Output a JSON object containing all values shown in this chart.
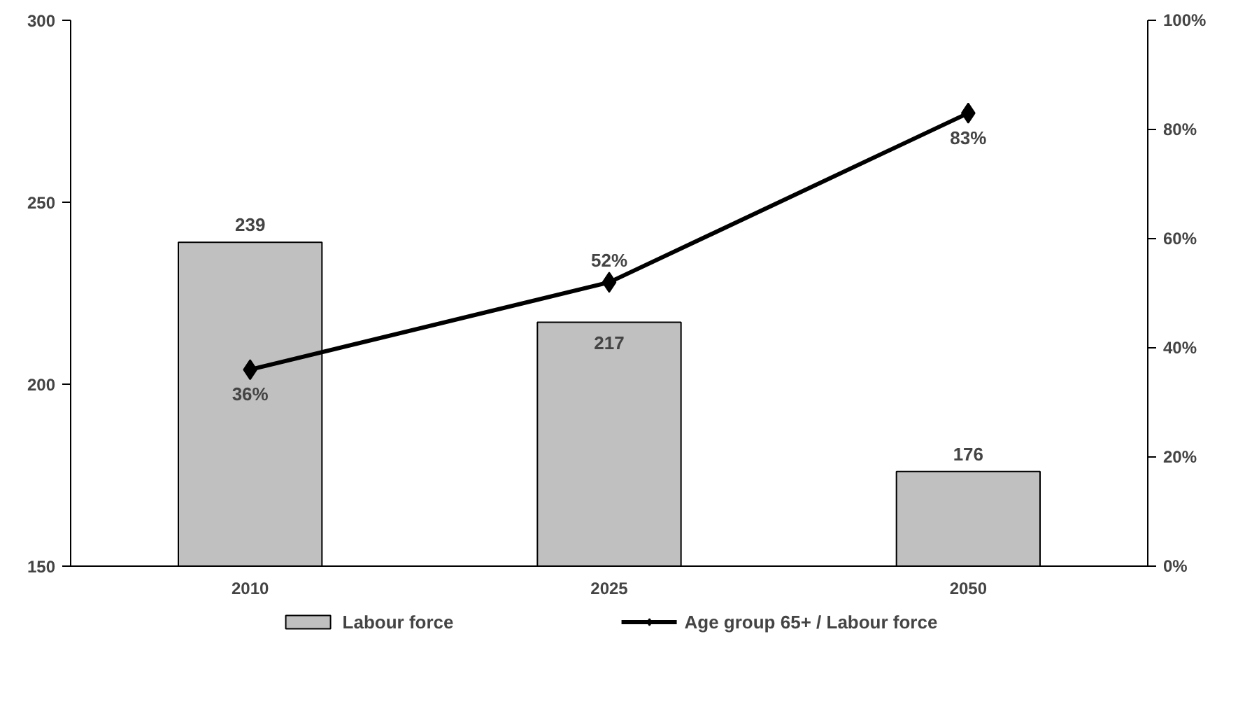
{
  "chart_data": {
    "type": "bar",
    "categories": [
      "2010",
      "2025",
      "2050"
    ],
    "series": [
      {
        "name": "Labour force",
        "color": "#c0c0c0",
        "values": [
          239,
          217,
          176
        ],
        "value_labels": [
          "239",
          "217",
          "176"
        ]
      },
      {
        "name": "Age group 65+ / Labour force",
        "type": "line",
        "axis": "y2",
        "color": "#000000",
        "values": [
          36,
          52,
          83
        ],
        "value_labels": [
          "36%",
          "52%",
          "83%"
        ]
      }
    ],
    "ylim": [
      150,
      300
    ],
    "yticks": [
      150,
      200,
      250,
      300
    ],
    "y2lim": [
      0,
      100
    ],
    "y2ticks": [
      {
        "value": 0,
        "label": "0%"
      },
      {
        "value": 20,
        "label": "20%"
      },
      {
        "value": 40,
        "label": "40%"
      },
      {
        "value": 60,
        "label": "60%"
      },
      {
        "value": 80,
        "label": "80%"
      },
      {
        "value": 100,
        "label": "100%"
      }
    ],
    "marker": "diamond",
    "line_style": "solid",
    "grid": false,
    "legend": "bottom"
  }
}
